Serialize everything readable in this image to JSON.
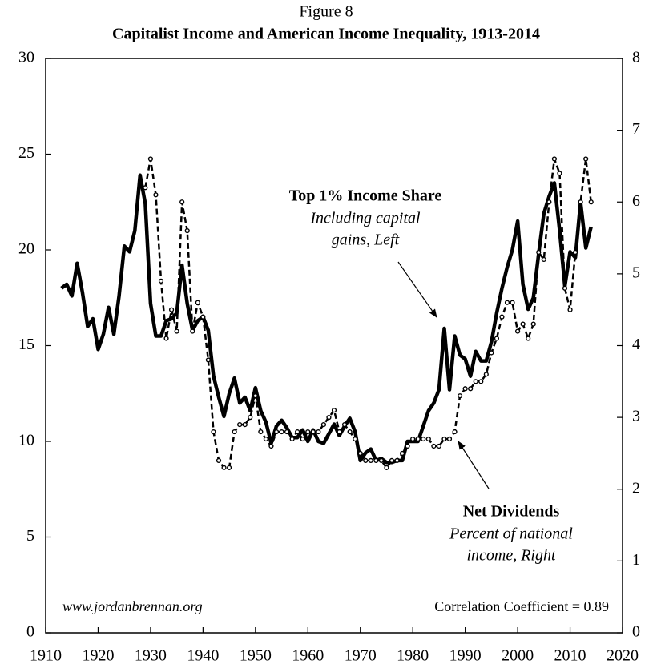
{
  "chart_data": {
    "type": "line",
    "title": "Figure 8",
    "subtitle": "Capitalist Income and American Income Inequality, 1913-2014",
    "x": [
      1913,
      1914,
      1915,
      1916,
      1917,
      1918,
      1919,
      1920,
      1921,
      1922,
      1923,
      1924,
      1925,
      1926,
      1927,
      1928,
      1929,
      1930,
      1931,
      1932,
      1933,
      1934,
      1935,
      1936,
      1937,
      1938,
      1939,
      1940,
      1941,
      1942,
      1943,
      1944,
      1945,
      1946,
      1947,
      1948,
      1949,
      1950,
      1951,
      1952,
      1953,
      1954,
      1955,
      1956,
      1957,
      1958,
      1959,
      1960,
      1961,
      1962,
      1963,
      1964,
      1965,
      1966,
      1967,
      1968,
      1969,
      1970,
      1971,
      1972,
      1973,
      1974,
      1975,
      1976,
      1977,
      1978,
      1979,
      1980,
      1981,
      1982,
      1983,
      1984,
      1985,
      1986,
      1987,
      1988,
      1989,
      1990,
      1991,
      1992,
      1993,
      1994,
      1995,
      1996,
      1997,
      1998,
      1999,
      2000,
      2001,
      2002,
      2003,
      2004,
      2005,
      2006,
      2007,
      2008,
      2009,
      2010,
      2011,
      2012,
      2013,
      2014
    ],
    "series": [
      {
        "name": "Top 1% Income Share",
        "color": "#000000",
        "axis": "y",
        "style": "solid",
        "values": [
          18.0,
          18.2,
          17.6,
          19.3,
          17.8,
          16.0,
          16.4,
          14.8,
          15.6,
          17.0,
          15.6,
          17.6,
          20.2,
          19.9,
          21.0,
          23.9,
          22.4,
          17.2,
          15.5,
          15.5,
          16.3,
          16.4,
          16.7,
          19.2,
          17.2,
          15.8,
          16.3,
          16.5,
          15.8,
          13.4,
          12.3,
          11.3,
          12.5,
          13.3,
          12.0,
          12.3,
          11.6,
          12.8,
          11.6,
          11.0,
          9.9,
          10.8,
          11.1,
          10.7,
          10.2,
          10.2,
          10.6,
          10.0,
          10.6,
          10.0,
          9.9,
          10.4,
          10.9,
          10.3,
          10.8,
          11.2,
          10.5,
          9.0,
          9.4,
          9.6,
          9.0,
          9.1,
          8.9,
          8.9,
          9.0,
          9.0,
          10.0,
          10.0,
          10.0,
          10.8,
          11.6,
          12.0,
          12.7,
          15.9,
          12.7,
          15.5,
          14.5,
          14.3,
          13.4,
          14.7,
          14.2,
          14.2,
          15.2,
          16.7,
          18.0,
          19.1,
          20.0,
          21.5,
          18.2,
          16.9,
          17.5,
          19.8,
          21.9,
          22.8,
          23.5,
          21.0,
          18.1,
          19.9,
          19.6,
          22.5,
          20.1,
          21.2
        ]
      },
      {
        "name": "Net Dividends",
        "color": "#000000",
        "axis": "y2",
        "style": "dotted",
        "values": [
          null,
          null,
          null,
          null,
          null,
          null,
          null,
          null,
          null,
          null,
          null,
          null,
          null,
          null,
          null,
          null,
          6.2,
          6.6,
          6.1,
          4.9,
          4.1,
          4.5,
          4.2,
          6.0,
          5.6,
          4.2,
          4.6,
          4.4,
          3.8,
          2.8,
          2.4,
          2.3,
          2.3,
          2.8,
          2.9,
          2.9,
          3.0,
          3.3,
          2.8,
          2.7,
          2.6,
          2.8,
          2.8,
          2.8,
          2.7,
          2.8,
          2.7,
          2.8,
          2.8,
          2.8,
          2.9,
          3.0,
          3.1,
          2.8,
          2.9,
          2.8,
          2.7,
          2.5,
          2.4,
          2.4,
          2.4,
          2.4,
          2.3,
          2.4,
          2.4,
          2.5,
          2.6,
          2.7,
          2.7,
          2.7,
          2.7,
          2.6,
          2.6,
          2.7,
          2.7,
          2.8,
          3.3,
          3.4,
          3.4,
          3.5,
          3.5,
          3.6,
          3.9,
          4.1,
          4.4,
          4.6,
          4.6,
          4.2,
          4.3,
          4.1,
          4.3,
          5.3,
          5.2,
          6.0,
          6.6,
          6.4,
          4.8,
          4.5,
          5.3,
          6.0,
          6.6,
          6.0
        ]
      }
    ],
    "xlim": [
      1910,
      2020
    ],
    "xticks": [
      1910,
      1920,
      1930,
      1940,
      1950,
      1960,
      1970,
      1980,
      1990,
      2000,
      2010,
      2020
    ],
    "ylim": [
      0,
      30
    ],
    "yticks": [
      0,
      5,
      10,
      15,
      20,
      25,
      30
    ],
    "y2lim": [
      0,
      8
    ],
    "y2ticks": [
      0,
      1,
      2,
      3,
      4,
      5,
      6,
      7,
      8
    ],
    "annotations": {
      "top_title": "Top 1% Income Share",
      "top_line1": "Including capital",
      "top_line2": "gains, Left",
      "div_title": "Net Dividends",
      "div_line1": "Percent of national",
      "div_line2": "income, Right",
      "website": "www.jordanbrennan.org",
      "correlation": "Correlation Coefficient = 0.89"
    }
  }
}
